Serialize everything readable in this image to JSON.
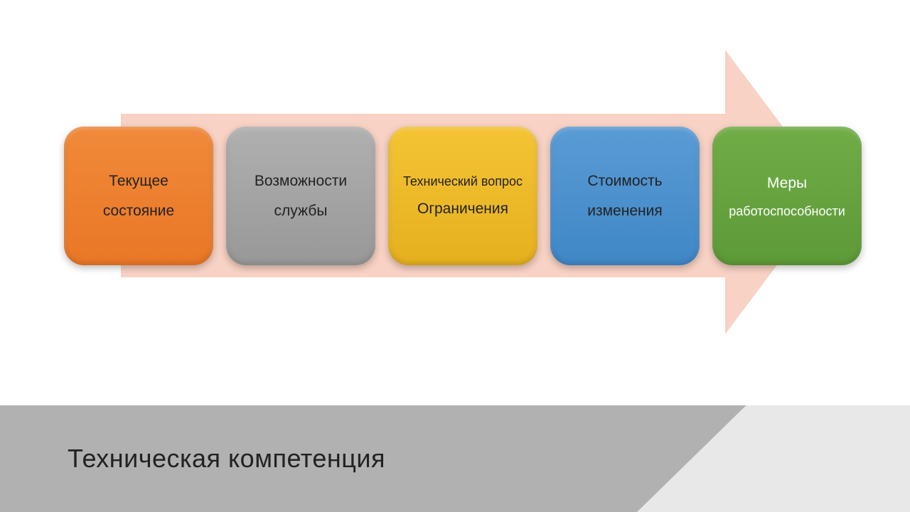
{
  "diagram": {
    "type": "process-arrow",
    "arrow_color": "#f8d2c4",
    "boxes": [
      {
        "line1": "Текущее",
        "line2": "состояние",
        "bg": "linear-gradient(180deg,#f08a3a 0%,#e97726 100%)",
        "text_color": "#222222"
      },
      {
        "line1": "Возможности",
        "line2": "службы",
        "bg": "linear-gradient(180deg,#b0b0b0 0%,#989898 100%)",
        "text_color": "#222222"
      },
      {
        "line1": "Технический вопрос",
        "line1_small": true,
        "line2": "Ограничения",
        "bg": "linear-gradient(180deg,#f4c435 0%,#e5b01e 100%)",
        "text_color": "#222222"
      },
      {
        "line1": "Стоимость",
        "line2": "изменения",
        "bg": "linear-gradient(180deg,#5a9bd5 0%,#3f87c6 100%)",
        "text_color": "#222222"
      },
      {
        "line1": "Меры",
        "line2": "работоспособности",
        "line2_small": true,
        "bg": "linear-gradient(180deg,#70ad47 0%,#5d9a38 100%)",
        "text_color": "#ffffff"
      }
    ]
  },
  "footer": {
    "title": "Техническая компетенция",
    "dark_color": "#b1b1b1",
    "light_color": "#e8e8e8"
  }
}
